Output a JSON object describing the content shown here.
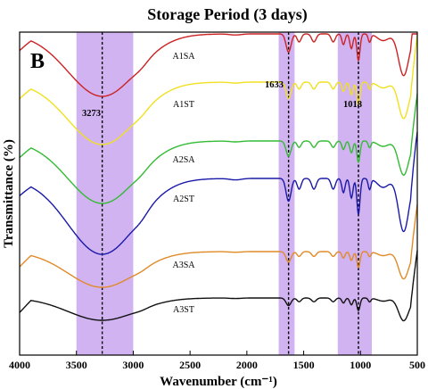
{
  "chart_data": {
    "type": "line",
    "title": "Storage Period (3 days)",
    "panel_label": "B",
    "xlabel": "Wavenumber (cm⁻¹)",
    "ylabel": "Transmittance (%)",
    "xlim": [
      4000,
      500
    ],
    "x_reversed": true,
    "x_ticks": [
      "4000",
      "3500",
      "3000",
      "2500",
      "2000",
      "1500",
      "1000",
      "500"
    ],
    "y_ticks_shown": false,
    "shaded_bands": [
      {
        "from": 3500,
        "to": 3000,
        "color": "#c9a6f0"
      },
      {
        "from": 1720,
        "to": 1580,
        "color": "#c9a6f0"
      },
      {
        "from": 1200,
        "to": 900,
        "color": "#c9a6f0"
      }
    ],
    "reference_lines": [
      3273,
      1633,
      1018
    ],
    "annotations": [
      {
        "text": "3273",
        "x": 3273
      },
      {
        "text": "1633",
        "x": 1633
      },
      {
        "text": "1018",
        "x": 1018
      }
    ],
    "series": [
      {
        "name": "A1SA",
        "color": "#cc2222",
        "offset": 0
      },
      {
        "name": "A1ST",
        "color": "#f0e020",
        "offset": 1
      },
      {
        "name": "A2SA",
        "color": "#33bb33",
        "offset": 2
      },
      {
        "name": "A2ST",
        "color": "#1a1aa8",
        "offset": 3
      },
      {
        "name": "A3SA",
        "color": "#e08a28",
        "offset": 4
      },
      {
        "name": "A3ST",
        "color": "#111111",
        "offset": 5
      }
    ]
  }
}
